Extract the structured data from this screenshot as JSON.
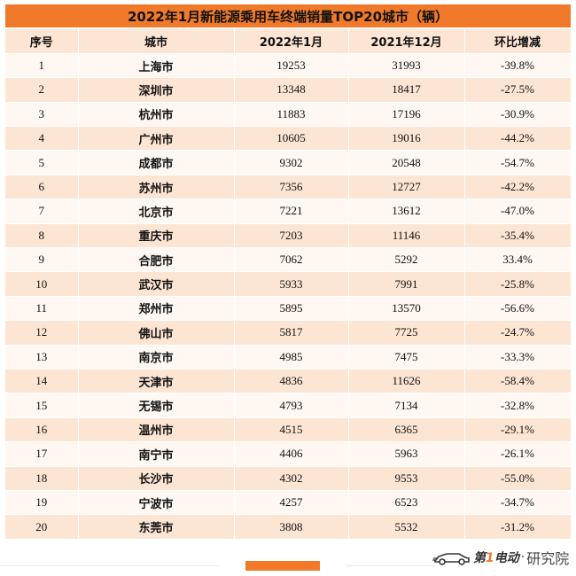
{
  "title": "2022年1月新能源乘用车终端销量TOP20城市（辆）",
  "headers": {
    "rank": "序号",
    "city": "城市",
    "jan2022": "2022年1月",
    "dec2021": "2021年12月",
    "mom": "环比增减"
  },
  "rows": [
    {
      "rank": "1",
      "city": "上海市",
      "jan2022": "19253",
      "dec2021": "31993",
      "mom": "-39.8%"
    },
    {
      "rank": "2",
      "city": "深圳市",
      "jan2022": "13348",
      "dec2021": "18417",
      "mom": "-27.5%"
    },
    {
      "rank": "3",
      "city": "杭州市",
      "jan2022": "11883",
      "dec2021": "17196",
      "mom": "-30.9%"
    },
    {
      "rank": "4",
      "city": "广州市",
      "jan2022": "10605",
      "dec2021": "19016",
      "mom": "-44.2%"
    },
    {
      "rank": "5",
      "city": "成都市",
      "jan2022": "9302",
      "dec2021": "20548",
      "mom": "-54.7%"
    },
    {
      "rank": "6",
      "city": "苏州市",
      "jan2022": "7356",
      "dec2021": "12727",
      "mom": "-42.2%"
    },
    {
      "rank": "7",
      "city": "北京市",
      "jan2022": "7221",
      "dec2021": "13612",
      "mom": "-47.0%"
    },
    {
      "rank": "8",
      "city": "重庆市",
      "jan2022": "7203",
      "dec2021": "11146",
      "mom": "-35.4%"
    },
    {
      "rank": "9",
      "city": "合肥市",
      "jan2022": "7062",
      "dec2021": "5292",
      "mom": "33.4%"
    },
    {
      "rank": "10",
      "city": "武汉市",
      "jan2022": "5933",
      "dec2021": "7991",
      "mom": "-25.8%"
    },
    {
      "rank": "11",
      "city": "郑州市",
      "jan2022": "5895",
      "dec2021": "13570",
      "mom": "-56.6%"
    },
    {
      "rank": "12",
      "city": "佛山市",
      "jan2022": "5817",
      "dec2021": "7725",
      "mom": "-24.7%"
    },
    {
      "rank": "13",
      "city": "南京市",
      "jan2022": "4985",
      "dec2021": "7475",
      "mom": "-33.3%"
    },
    {
      "rank": "14",
      "city": "天津市",
      "jan2022": "4836",
      "dec2021": "11626",
      "mom": "-58.4%"
    },
    {
      "rank": "15",
      "city": "无锡市",
      "jan2022": "4793",
      "dec2021": "7134",
      "mom": "-32.8%"
    },
    {
      "rank": "16",
      "city": "温州市",
      "jan2022": "4515",
      "dec2021": "6365",
      "mom": "-29.1%"
    },
    {
      "rank": "17",
      "city": "南宁市",
      "jan2022": "4406",
      "dec2021": "5963",
      "mom": "-26.1%"
    },
    {
      "rank": "18",
      "city": "长沙市",
      "jan2022": "4302",
      "dec2021": "9553",
      "mom": "-55.0%"
    },
    {
      "rank": "19",
      "city": "宁波市",
      "jan2022": "4257",
      "dec2021": "6523",
      "mom": "-34.7%"
    },
    {
      "rank": "20",
      "city": "东莞市",
      "jan2022": "3808",
      "dec2021": "5532",
      "mom": "-31.2%"
    }
  ],
  "watermark": {
    "logo_text_prefix": "第",
    "logo_text_one": "1",
    "logo_text_suffix": "电动",
    "separator": "·",
    "label": "研究院"
  },
  "colors": {
    "accent": "#f07a29",
    "header_bg": "#fde5d3",
    "row_light": "#fff7f1",
    "row_dark": "#fde5d3"
  }
}
